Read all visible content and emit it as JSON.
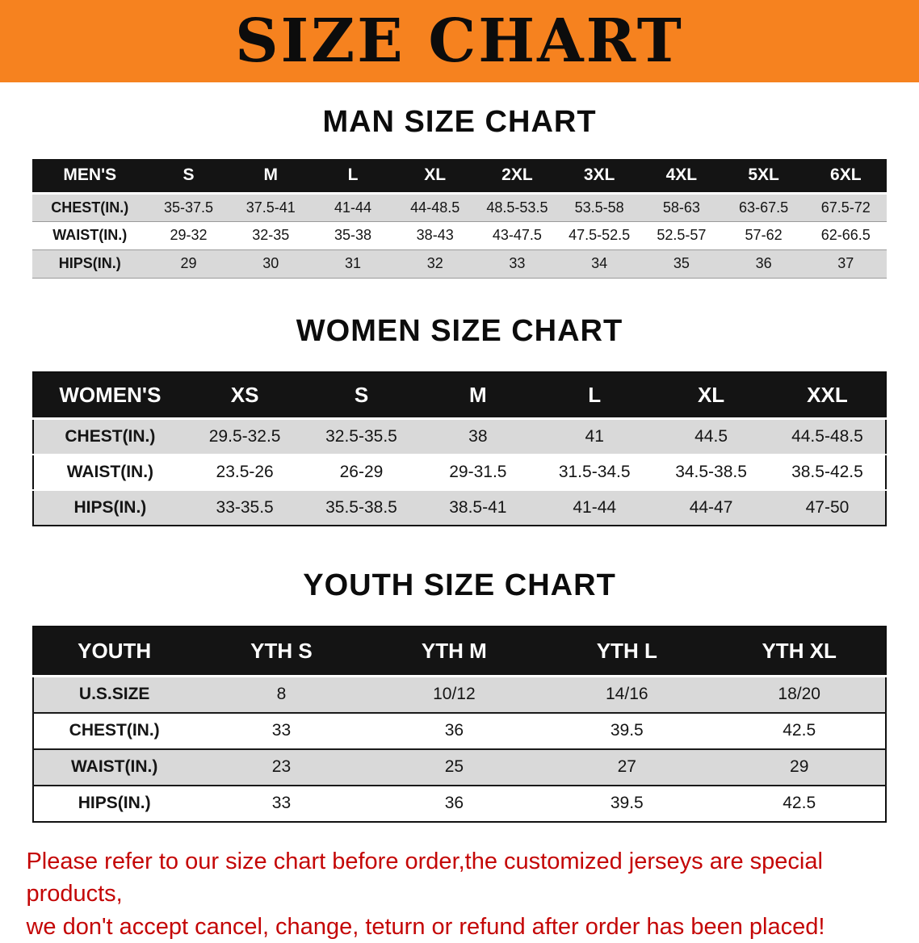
{
  "banner": {
    "title": "SIZE CHART"
  },
  "sections": [
    {
      "id": "men",
      "heading": "MAN SIZE CHART",
      "table": {
        "header": [
          "MEN'S",
          "S",
          "M",
          "L",
          "XL",
          "2XL",
          "3XL",
          "4XL",
          "5XL",
          "6XL"
        ],
        "rows": [
          [
            "CHEST(IN.)",
            "35-37.5",
            "37.5-41",
            "41-44",
            "44-48.5",
            "48.5-53.5",
            "53.5-58",
            "58-63",
            "63-67.5",
            "67.5-72"
          ],
          [
            "WAIST(IN.)",
            "29-32",
            "32-35",
            "35-38",
            "38-43",
            "43-47.5",
            "47.5-52.5",
            "52.5-57",
            "57-62",
            "62-66.5"
          ],
          [
            "HIPS(IN.)",
            "29",
            "30",
            "31",
            "32",
            "33",
            "34",
            "35",
            "36",
            "37"
          ]
        ]
      }
    },
    {
      "id": "women",
      "heading": "WOMEN SIZE CHART",
      "table": {
        "header": [
          "WOMEN'S",
          "XS",
          "S",
          "M",
          "L",
          "XL",
          "XXL"
        ],
        "rows": [
          [
            "CHEST(IN.)",
            "29.5-32.5",
            "32.5-35.5",
            "38",
            "41",
            "44.5",
            "44.5-48.5"
          ],
          [
            "WAIST(IN.)",
            "23.5-26",
            "26-29",
            "29-31.5",
            "31.5-34.5",
            "34.5-38.5",
            "38.5-42.5"
          ],
          [
            "HIPS(IN.)",
            "33-35.5",
            "35.5-38.5",
            "38.5-41",
            "41-44",
            "44-47",
            "47-50"
          ]
        ]
      }
    },
    {
      "id": "youth",
      "heading": "YOUTH SIZE CHART",
      "table": {
        "header": [
          "YOUTH",
          "YTH S",
          "YTH M",
          "YTH L",
          "YTH XL"
        ],
        "rows": [
          [
            "U.S.SIZE",
            "8",
            "10/12",
            "14/16",
            "18/20"
          ],
          [
            "CHEST(IN.)",
            "33",
            "36",
            "39.5",
            "42.5"
          ],
          [
            "WAIST(IN.)",
            "23",
            "25",
            "27",
            "29"
          ],
          [
            "HIPS(IN.)",
            "33",
            "36",
            "39.5",
            "42.5"
          ]
        ]
      }
    }
  ],
  "disclaimer": {
    "line1": "Please refer to our size chart before order,the customized jerseys are special products,",
    "line2": "we don't accept cancel, change, teturn or refund after order has been placed!"
  },
  "colors": {
    "banner_bg": "#f6821f",
    "header_bg": "#141414",
    "header_text": "#ffffff",
    "row_shade": "#d9d9d9",
    "disclaimer_red": "#c40606",
    "text_black": "#111111"
  }
}
